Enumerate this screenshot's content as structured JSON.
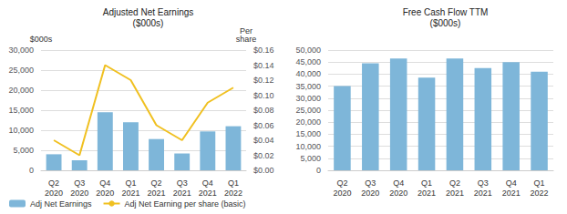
{
  "chart_data": [
    {
      "type": "bar",
      "title": "Adjusted Net Earnings\n($000s)",
      "categories": [
        "Q2\n2020",
        "Q3\n2020",
        "Q4\n2020",
        "Q1\n2021",
        "Q2\n2021",
        "Q3\n2021",
        "Q4\n2021",
        "Q1\n2022"
      ],
      "series": [
        {
          "name": "Adj Net Earnings",
          "type": "bar",
          "color": "#7EB6D9",
          "values": [
            4000,
            2500,
            14500,
            12000,
            7800,
            4200,
            9700,
            11000
          ]
        },
        {
          "name": "Adj Net Earning per share (basic)",
          "type": "line",
          "color": "#F0C020",
          "axis": "y2",
          "values": [
            0.04,
            0.02,
            0.14,
            0.12,
            0.06,
            0.04,
            0.09,
            0.11
          ]
        }
      ],
      "ylabel": "$000s",
      "y2label": "Per\nshare",
      "ylim": [
        0,
        30000
      ],
      "yticks": [
        0,
        {
          "value": 5000,
          "label": "5,000"
        },
        {
          "value": 10000,
          "label": "10,000"
        },
        {
          "value": 15000,
          "label": "15,000"
        },
        {
          "value": 20000,
          "label": "20,000"
        },
        {
          "value": 25000,
          "label": "25,000"
        },
        {
          "value": 30000,
          "label": "30,000"
        }
      ],
      "y2lim": [
        0,
        0.16
      ],
      "y2ticks": [
        {
          "value": 0,
          "label": "$0.00"
        },
        {
          "value": 0.02,
          "label": "$0.02"
        },
        {
          "value": 0.04,
          "label": "$0.04"
        },
        {
          "value": 0.06,
          "label": "$0.06"
        },
        {
          "value": 0.08,
          "label": "$0.08"
        },
        {
          "value": 0.1,
          "label": "$0.10"
        },
        {
          "value": 0.12,
          "label": "$0.12"
        },
        {
          "value": 0.14,
          "label": "$0.14"
        },
        {
          "value": 0.16,
          "label": "$0.16"
        }
      ],
      "grid": true,
      "legend": "lower left"
    },
    {
      "type": "bar",
      "title": "Free Cash Flow TTM\n($000s)",
      "categories": [
        "Q2\n2020",
        "Q3\n2020",
        "Q4\n2020",
        "Q1\n2021",
        "Q2\n2021",
        "Q3\n2021",
        "Q4\n2021",
        "Q1\n2022"
      ],
      "values": [
        35000,
        44500,
        46500,
        38500,
        46500,
        42500,
        45000,
        41000
      ],
      "color": "#7EB6D9",
      "ylim": [
        0,
        50000
      ],
      "yticks": [
        0,
        {
          "value": 5000,
          "label": "5,000"
        },
        {
          "value": 10000,
          "label": "10,000"
        },
        {
          "value": 15000,
          "label": "15,000"
        },
        {
          "value": 20000,
          "label": "20,000"
        },
        {
          "value": 25000,
          "label": "25,000"
        },
        {
          "value": 30000,
          "label": "30,000"
        },
        {
          "value": 35000,
          "label": "35,000"
        },
        {
          "value": 40000,
          "label": "40,000"
        },
        {
          "value": 45000,
          "label": "45,000"
        },
        {
          "value": 50000,
          "label": "50,000"
        }
      ],
      "grid": true
    }
  ]
}
